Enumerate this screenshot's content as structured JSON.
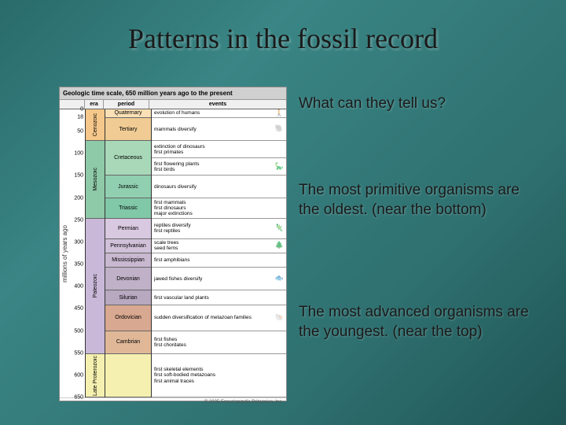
{
  "title": "Patterns in the fossil record",
  "question": "What can they tell us?",
  "answer1": "The most primitive organisms are the oldest.  (near the bottom)",
  "answer2": "The most advanced organisms are the youngest. (near the top)",
  "chart": {
    "header": "Geologic time scale, 650 million years ago to the present",
    "ylabel": "millions of years ago",
    "footer": "© 2005 Encyclopædia Britannica, Inc.",
    "col_headers": {
      "era": "era",
      "period": "period",
      "events": "events"
    },
    "yticks": [
      0,
      18,
      50,
      100,
      150,
      200,
      250,
      300,
      350,
      400,
      450,
      500,
      550,
      600,
      650
    ],
    "eras": [
      {
        "label": "Cenozoic",
        "height": 11,
        "color": "#f5c78a"
      },
      {
        "label": "Mesozoic",
        "height": 27,
        "color": "#8ec9a8"
      },
      {
        "label": "Paleozoic",
        "height": 47,
        "color": "#c9b8d8"
      },
      {
        "label": "Late Proterozoic",
        "height": 15,
        "color": "#f5f0b0"
      }
    ],
    "periods": [
      {
        "label": "Quaternary",
        "height": 3,
        "color": "#f9e0b5"
      },
      {
        "label": "Tertiary",
        "height": 8,
        "color": "#f0cc94"
      },
      {
        "label": "Cretaceous",
        "height": 12,
        "color": "#a8d8b8"
      },
      {
        "label": "Jurassic",
        "height": 8,
        "color": "#90cfb0"
      },
      {
        "label": "Triassic",
        "height": 7,
        "color": "#80c8a8"
      },
      {
        "label": "Permian",
        "height": 7,
        "color": "#d8c8e0"
      },
      {
        "label": "Pennsylvanian",
        "height": 5,
        "color": "#d0c0d8"
      },
      {
        "label": "Mississippian",
        "height": 5,
        "color": "#c8b8d0"
      },
      {
        "label": "Devonian",
        "height": 8,
        "color": "#c0b0c8"
      },
      {
        "label": "Silurian",
        "height": 5,
        "color": "#b8a8c0"
      },
      {
        "label": "Ordovician",
        "height": 9,
        "color": "#d8a890"
      },
      {
        "label": "Cambrian",
        "height": 8,
        "color": "#e0b898"
      },
      {
        "label": "",
        "height": 15,
        "color": "#f5f0b0"
      }
    ],
    "events": [
      {
        "label": "evolution of humans",
        "height": 3,
        "icon": "🚶"
      },
      {
        "label": "mammals diversify",
        "height": 8,
        "icon": "🐘"
      },
      {
        "label": "extinction of dinosaurs\nfirst primates",
        "height": 6,
        "icon": ""
      },
      {
        "label": "first flowering plants\nfirst birds",
        "height": 6,
        "icon": "🦕"
      },
      {
        "label": "dinosaurs diversify",
        "height": 8,
        "icon": ""
      },
      {
        "label": "first mammals\nfirst dinosaurs\nmajor extinctions",
        "height": 7,
        "icon": ""
      },
      {
        "label": "reptiles diversify\nfirst reptiles",
        "height": 7,
        "icon": "🦎"
      },
      {
        "label": "scale trees\nseed ferns",
        "height": 5,
        "icon": "🌲"
      },
      {
        "label": "first amphibians",
        "height": 5,
        "icon": ""
      },
      {
        "label": "jawed fishes diversify",
        "height": 8,
        "icon": "🐟"
      },
      {
        "label": "first vascular land plants",
        "height": 5,
        "icon": ""
      },
      {
        "label": "sudden diversification of metazoan families",
        "height": 9,
        "icon": "🐚"
      },
      {
        "label": "first fishes\nfirst chordates",
        "height": 8,
        "icon": ""
      },
      {
        "label": "first skeletal elements\nfirst soft-bodied metazoans\nfirst animal traces",
        "height": 15,
        "icon": ""
      }
    ]
  },
  "colors": {
    "slide_bg": "#2f7070",
    "title_color": "#1a1a1a",
    "text_color": "#1a1a1a"
  }
}
